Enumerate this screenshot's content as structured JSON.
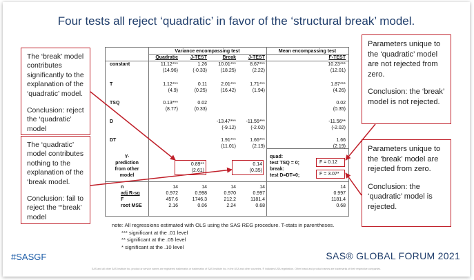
{
  "title": "Four tests all reject ‘quadratic’ in favor of the ‘structural break’ model.",
  "callouts": {
    "left_top": {
      "p1": "The ‘break’ model contributes significantly to the explanation of the ‘quadratic’ model.",
      "p2": "Conclusion: reject the ‘quadratic’ model"
    },
    "left_bottom": {
      "p1": "The ‘quadratic’ model contributes nothing to the explanation of the ‘break model.",
      "p2": "Conclusion: fail to reject the “‘break’ model"
    },
    "right_top": {
      "p1": "Parameters unique to the ‘quadratic’ model are not rejected from zero.",
      "p2": "Conclusion: the ‘break’ model is not rejected."
    },
    "right_bottom": {
      "p1": "Parameters unique to the ‘break’ model are rejected from zero.",
      "p2": "Conclusion: the ‘quadratic’ model is rejected."
    }
  },
  "table": {
    "header": {
      "variance": "Variance encompassing test",
      "mean": "Mean encompassing test",
      "cols": [
        "Quadratic",
        "J-TEST",
        "Break",
        "J-TEST",
        "F-TEST"
      ]
    },
    "rows": {
      "constant": {
        "label": "constant",
        "v": [
          "11.12***",
          "1.26",
          "10.01***",
          "8.67***",
          "10.23***"
        ],
        "t": [
          "(14.96)",
          "(-0.33)",
          "(18.25)",
          "(2.22)",
          "(12.01)"
        ]
      },
      "T": {
        "label": "T",
        "v": [
          "1.12***",
          "0.11",
          "2.01***",
          "1.71***",
          "1.87***"
        ],
        "t": [
          "(4.9)",
          "(0.25)",
          "(16.42)",
          "(1.94)",
          "(4.26)"
        ]
      },
      "TSQ": {
        "label": "TSQ",
        "v": [
          "0.13***",
          "0.02",
          "0.02"
        ],
        "t": [
          "(8.77)",
          "(0.33)",
          "(0.35)"
        ]
      },
      "D": {
        "label": "D",
        "v": [
          "-13.47***",
          "-11.56***",
          "-11.56**"
        ],
        "t": [
          "(-9.12)",
          "(-2.02)",
          "(-2.02)"
        ]
      },
      "DT": {
        "label": "DT",
        "v": [
          "1.91***",
          "1.66***",
          "1.66"
        ],
        "t": [
          "(11.01)",
          "(2.19)",
          "(2.19)"
        ]
      },
      "ypred": {
        "label1": "Y-",
        "label2": "prediction",
        "label3": "from other",
        "label4": "model",
        "v1": "0.89**",
        "t1": "(2.61)",
        "v2": "0.14",
        "t2": "(0.35)"
      }
    },
    "ftest": {
      "quad1": "quad:",
      "quad2": "test TSQ = 0;",
      "quad_f": "F = 0.12",
      "break1": "break:",
      "break2": "test D=DT=0;",
      "break_f": "F = 3.07*"
    },
    "stats": {
      "labels": [
        "n",
        "adj R-sq",
        "F",
        "root MSE"
      ],
      "quad": [
        "14",
        "0.972",
        "457.6",
        "2.16"
      ],
      "jtest1": [
        "14",
        "0.998",
        "1746.3",
        "0.06"
      ],
      "brk": [
        "14",
        "0.970",
        "212.2",
        "2.24"
      ],
      "jtest2": [
        "14",
        "0.997",
        "1181.4",
        "0.68"
      ],
      "ftest": [
        "14",
        "0.997",
        "1181.4",
        "0.68"
      ]
    }
  },
  "notes": {
    "line1": "note:  All regressions estimated with OLS using the SAS REG procedure.  T-stats in parentheses.",
    "line2": "*** significant at the .01 level",
    "line3": "**  significant at the .05 level",
    "line4": "*   significant at the .10 level"
  },
  "footer": {
    "hashtag": "#SASGF",
    "brand": "SAS® GLOBAL FORUM 2021",
    "fineprint": "SAS and all other SAS Institute Inc. product or service names are registered trademarks or trademarks of SAS Institute Inc. in the USA and other countries. ® indicates USA registration. Other brand and product names are trademarks of their respective companies."
  },
  "colors": {
    "accent_red": "#c0202a",
    "title_blue": "#1f3d6b",
    "hashtag_blue": "#1f5ea8"
  }
}
